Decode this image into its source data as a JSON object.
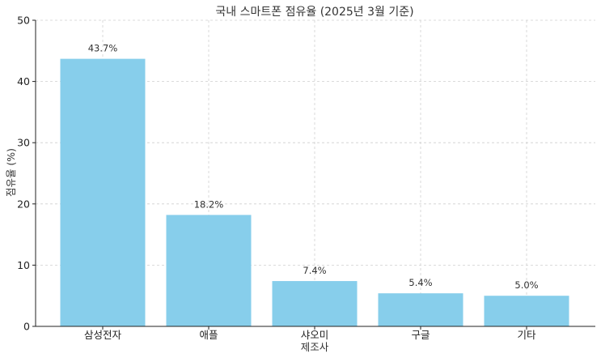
{
  "chart_data": {
    "type": "bar",
    "title": "국내 스마트폰 점유율 (2025년 3월 기준)",
    "xlabel": "제조사",
    "ylabel": "점유율 (%)",
    "categories": [
      "삼성전자",
      "애플",
      "샤오미",
      "구글",
      "기타"
    ],
    "values": [
      43.7,
      18.2,
      7.4,
      5.4,
      5.0
    ],
    "value_labels": [
      "43.7%",
      "18.2%",
      "7.4%",
      "5.4%",
      "5.0%"
    ],
    "ylim": [
      0,
      50
    ],
    "yticks": [
      0,
      10,
      20,
      30,
      40,
      50
    ],
    "grid": true,
    "bar_color": "#87CEEB"
  }
}
